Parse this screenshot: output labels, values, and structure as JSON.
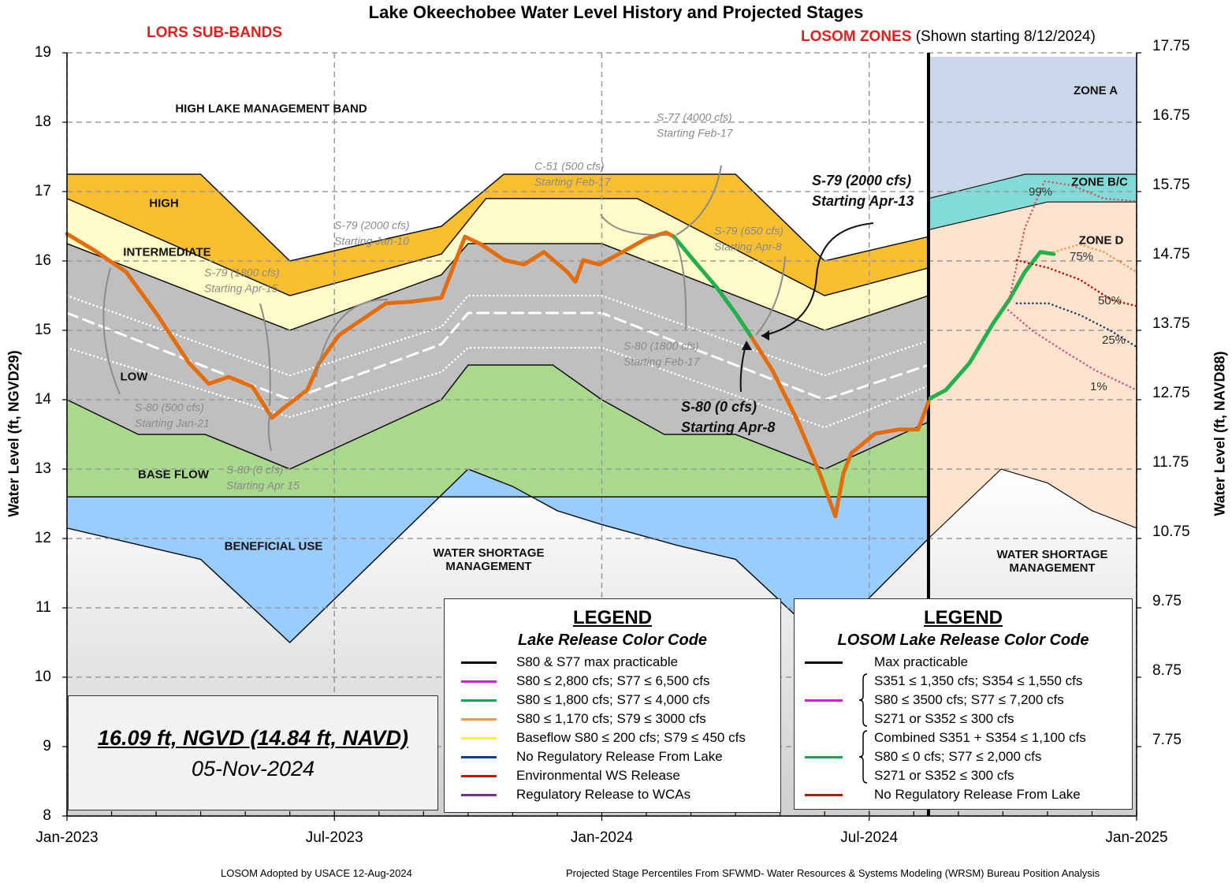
{
  "chart_data": {
    "type": "area",
    "title": "Lake Okeechobee Water Level History and Projected Stages",
    "ylabel": "Water Level (ft, NGVD29)",
    "y2label": "Water Level (ft, NAVD88)",
    "xlim": [
      0,
      24
    ],
    "xticks": [
      {
        "value": 0,
        "label": "Jan-2023"
      },
      {
        "value": 6,
        "label": "Jul-2023"
      },
      {
        "value": 12,
        "label": "Jan-2024"
      },
      {
        "value": 18,
        "label": "Jul-2024"
      },
      {
        "value": 24,
        "label": "Jan-2025"
      }
    ],
    "ylim": [
      8,
      19
    ],
    "yticks": [
      8,
      9,
      10,
      11,
      12,
      13,
      14,
      15,
      16,
      17,
      18,
      19
    ],
    "y2lim": [
      6.75,
      17.75
    ],
    "y2ticks": [
      7.75,
      8.75,
      9.75,
      10.75,
      11.75,
      12.75,
      13.75,
      14.75,
      15.75,
      16.75,
      17.75
    ],
    "grid": true,
    "lors": {
      "title": "LORS SUB-BANDS",
      "above": "HIGH LAKE MANAGEMENT BAND",
      "below": "WATER SHORTAGE MANAGEMENT",
      "boundaries": [
        {
          "x": [
            0,
            3,
            5,
            8.4,
            9.8,
            15,
            17,
            19.33
          ],
          "values": [
            17.25,
            17.25,
            16,
            16.5,
            17.25,
            17.25,
            16,
            16.35
          ]
        },
        {
          "x": [
            0,
            5,
            8.4,
            9.4,
            12.8,
            17,
            19.33
          ],
          "values": [
            16.9,
            15.5,
            16.1,
            16.9,
            16.9,
            15.5,
            15.9
          ]
        },
        {
          "x": [
            0,
            5,
            8.4,
            9,
            12,
            17,
            19.33
          ],
          "values": [
            16.25,
            15,
            15.8,
            16.25,
            16.25,
            15,
            15.5
          ]
        },
        {
          "x": [
            0,
            1.6,
            3.1,
            5,
            8.4,
            9,
            10.9,
            12,
            13.4,
            15,
            17,
            19.33
          ],
          "values": [
            14,
            13.5,
            13.5,
            13,
            14,
            14.5,
            14.5,
            14,
            13.5,
            13.5,
            13,
            13.68
          ]
        },
        {
          "x": [
            0,
            19.33
          ],
          "values": [
            12.6,
            12.6
          ]
        },
        {
          "x": [
            0,
            3,
            5,
            9,
            10,
            11,
            12,
            13.7,
            15,
            17,
            19.33
          ],
          "values": [
            12.15,
            11.7,
            10.5,
            13,
            12.75,
            12.4,
            12.2,
            11.9,
            11.7,
            10.5,
            12
          ]
        }
      ],
      "bands": [
        {
          "name": "HIGH",
          "color": "#f9bf2e"
        },
        {
          "name": "INTERMEDIATE",
          "color": "#fffbc8"
        },
        {
          "name": "LOW",
          "color": "#bfbfbf"
        },
        {
          "name": "BASE FLOW",
          "color": "#a9d98d"
        },
        {
          "name": "BENEFICIAL USE",
          "color": "#99ccff"
        }
      ],
      "guides": [
        {
          "style": "dotted",
          "x": [
            0,
            5,
            8.4,
            9,
            12,
            17,
            19.33
          ],
          "values": [
            15.5,
            14.35,
            15.05,
            15.5,
            15.5,
            14.35,
            14.85
          ]
        },
        {
          "style": "dashed",
          "x": [
            0,
            5,
            8.4,
            9,
            12,
            17,
            19.33
          ],
          "values": [
            15.25,
            14,
            14.8,
            15.25,
            15.25,
            14,
            14.5
          ]
        },
        {
          "style": "dotted",
          "x": [
            0,
            5,
            8.4,
            9,
            12,
            17,
            19.33
          ],
          "values": [
            14.75,
            13.75,
            14.4,
            14.75,
            14.75,
            13.6,
            14.2
          ]
        }
      ]
    },
    "losom": {
      "title": "LOSOM ZONES",
      "note": "(Shown starting  8/12/2024)",
      "below": "WATER SHORTAGE MANAGEMENT",
      "boundaries": [
        {
          "x": [
            19.33,
            21.5,
            24
          ],
          "values": [
            16.9,
            17.25,
            17.25
          ]
        },
        {
          "x": [
            19.33,
            22,
            24
          ],
          "values": [
            16.45,
            16.85,
            16.85
          ]
        },
        {
          "x": [
            19.33,
            20.96,
            22,
            23,
            24
          ],
          "values": [
            12,
            13,
            12.8,
            12.4,
            12.15
          ]
        }
      ],
      "zones": [
        {
          "name": "ZONE A",
          "color": "#cad7ea"
        },
        {
          "name": "ZONE B/C",
          "color": "#83dbd8"
        },
        {
          "name": "ZONE D",
          "color": "#fbe3cd"
        }
      ]
    },
    "series": [
      {
        "color": "#e46c0a",
        "style": "solid",
        "x": [
          0,
          0.62,
          1.33,
          2.03,
          2.74,
          3.18,
          3.63,
          4.16,
          4.6,
          4.86,
          5.39,
          5.66,
          6.1,
          6.63,
          7.16,
          7.69,
          8.4,
          8.93,
          9.29,
          9.82,
          10.26,
          10.7,
          11.23,
          11.41,
          11.58,
          11.94,
          12.47,
          12.99,
          13.44,
          13.62,
          14.5,
          15.33,
          15.83,
          16.36,
          16.89,
          17.24,
          17.42,
          17.6,
          18.13,
          18.66,
          19.1,
          19.33
        ],
        "values": [
          16.39,
          16.15,
          15.84,
          15.22,
          14.53,
          14.23,
          14.33,
          14.19,
          13.74,
          13.88,
          14.14,
          14.53,
          14.93,
          15.16,
          15.39,
          15.41,
          15.47,
          16.35,
          16.24,
          16.01,
          15.95,
          16.13,
          15.84,
          15.7,
          16.01,
          15.95,
          16.13,
          16.32,
          16.41,
          16.35,
          null,
          14.93,
          14.42,
          13.74,
          12.94,
          12.32,
          12.94,
          13.23,
          13.51,
          13.57,
          13.57,
          13.97
        ]
      },
      {
        "color": "#22b14c",
        "style": "solid",
        "x": [
          13.62,
          14.06,
          14.59,
          15.03,
          15.33,
          17,
          19.37,
          19.72,
          20.25,
          20.78,
          21.14,
          21.49,
          21.84,
          22.14
        ],
        "values": [
          16.35,
          16.01,
          15.61,
          15.22,
          14.93,
          null,
          14.02,
          14.14,
          14.53,
          15.1,
          15.44,
          15.84,
          16.13,
          16.1
        ]
      },
      {
        "name": "99%",
        "color": "#d2506c",
        "style": "dotted",
        "x": [
          21.14,
          21.49,
          21.93,
          22.55,
          23.26,
          24
        ],
        "values": [
          15.44,
          16.47,
          17.15,
          17.09,
          16.9,
          16.86
        ]
      },
      {
        "name": "75%",
        "color": "#f79646",
        "style": "dotted",
        "x": [
          22.14,
          22.73,
          23.26,
          24
        ],
        "values": [
          16.13,
          16.24,
          16.13,
          15.84
        ]
      },
      {
        "name": "50%",
        "color": "#c00000",
        "style": "dotted",
        "x": [
          21.31,
          22.02,
          22.73,
          23.43,
          24
        ],
        "values": [
          16.01,
          15.9,
          15.73,
          15.44,
          15.35
        ]
      },
      {
        "name": "25%",
        "color": "#1f3864",
        "style": "dotted",
        "x": [
          21.31,
          22.02,
          22.73,
          23.43,
          24
        ],
        "values": [
          15.39,
          15.39,
          15.22,
          14.99,
          14.76
        ]
      },
      {
        "name": "1%",
        "color": "#d0508a",
        "style": "dotted",
        "x": [
          21.05,
          21.67,
          22.37,
          23.08,
          24
        ],
        "values": [
          15.33,
          14.99,
          14.7,
          14.42,
          14.14
        ]
      }
    ],
    "annotations": [
      {
        "style": "gray",
        "text": [
          "C-51 (500 cfs)",
          "Starting Feb-17"
        ]
      },
      {
        "style": "gray",
        "text": [
          "S-77 (4000 cfs)",
          "Starting Feb-17"
        ]
      },
      {
        "style": "gray",
        "text": [
          "S-79 (2000 cfs)",
          "Starting Jan-10"
        ]
      },
      {
        "style": "gray",
        "text": [
          "S-79 (1800 cfs)",
          "Starting Apr-15"
        ]
      },
      {
        "style": "gray",
        "text": [
          "S-79 (650 cfs)",
          "Starting Apr-8"
        ]
      },
      {
        "style": "gray",
        "text": [
          "S-80 (1800 cfs)",
          "Starting Feb-17"
        ]
      },
      {
        "style": "gray",
        "text": [
          "S-80 (500 cfs)",
          "Starting Jan-21"
        ]
      },
      {
        "style": "gray",
        "text": [
          "S-80 (0 cfs)",
          "Starting Apr 15"
        ]
      },
      {
        "style": "bold",
        "text": [
          "S-79 (2000 cfs)",
          "Starting Apr-13"
        ]
      },
      {
        "style": "bold",
        "text": [
          "S-80 (0 cfs)",
          "Starting Apr-8"
        ]
      }
    ],
    "legends": [
      {
        "title": "LEGEND",
        "subtitle": "Lake Release Color Code",
        "items": [
          {
            "label": "S80 & S77 max practicable",
            "color": "#000000"
          },
          {
            "label": "S80 ≤ 2,800 cfs;  S77 ≤ 6,500 cfs",
            "color": "#ff00ff"
          },
          {
            "label": "S80 ≤ 1,800 cfs;  S77 ≤ 4,000 cfs",
            "color": "#00b050"
          },
          {
            "label": "S80 ≤ 1,170 cfs;  S79 ≤ 3000 cfs",
            "color": "#f79646"
          },
          {
            "label": "Baseflow S80 ≤ 200 cfs;  S79 ≤ 450 cfs",
            "color": "#ffff00"
          },
          {
            "label": "No Regulatory Release From Lake",
            "color": "#0033cc"
          },
          {
            "label": "Environmental WS Release",
            "color": "#e00000"
          },
          {
            "label": "Regulatory Release to WCAs",
            "color": "#7030a0"
          }
        ]
      },
      {
        "title": "LEGEND",
        "subtitle": "LOSOM Lake Release Color Code",
        "items": [
          {
            "lines": [
              "Max practicable"
            ],
            "color": "#000000"
          },
          {
            "lines": [
              "S351 ≤ 1,350 cfs; S354 ≤ 1,550 cfs",
              "S80 ≤ 3500 cfs; S77 ≤ 7,200 cfs",
              "S271 or S352 ≤ 300 cfs"
            ],
            "color": "#ff00ff"
          },
          {
            "lines": [
              "Combined S351 + S354 ≤ 1,100 cfs",
              "S80 ≤ 0 cfs;  S77 ≤ 2,000 cfs",
              "S271 or S352 ≤  300 cfs"
            ],
            "color": "#00b050"
          },
          {
            "lines": [
              "No Regulatory Release From Lake"
            ],
            "color": "#e00000"
          }
        ]
      }
    ],
    "stage": {
      "level": "16.09 ft, NGVD (14.84 ft, NAVD)",
      "date": "05-Nov-2024"
    },
    "footnotes": [
      "LOSOM Adopted by USACE 12-Aug-2024",
      "Projected Stage Percentiles From SFWMD- Water Resources & Systems Modeling (WRSM) Bureau Position Analysis"
    ]
  }
}
